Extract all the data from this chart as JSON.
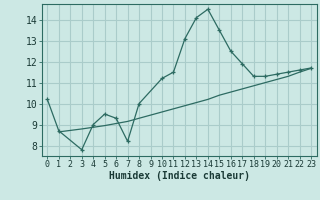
{
  "title": "",
  "xlabel": "Humidex (Indice chaleur)",
  "background_color": "#cce8e4",
  "grid_color": "#aaccca",
  "line_color": "#2d6b62",
  "xlim": [
    -0.5,
    23.5
  ],
  "ylim": [
    7.5,
    14.75
  ],
  "yticks": [
    8,
    9,
    10,
    11,
    12,
    13,
    14
  ],
  "xticks": [
    0,
    1,
    2,
    3,
    4,
    5,
    6,
    7,
    8,
    9,
    10,
    11,
    12,
    13,
    14,
    15,
    16,
    17,
    18,
    19,
    20,
    21,
    22,
    23
  ],
  "line1_x": [
    0,
    1,
    3,
    4,
    5,
    6,
    7,
    8,
    10,
    11,
    12,
    13,
    14,
    15,
    16,
    17,
    18,
    19,
    20,
    21,
    22,
    23
  ],
  "line1_y": [
    10.2,
    8.7,
    7.8,
    9.0,
    9.5,
    9.3,
    8.2,
    10.0,
    11.2,
    11.5,
    13.1,
    14.1,
    14.5,
    13.5,
    12.5,
    11.9,
    11.3,
    11.3,
    11.4,
    11.5,
    11.6,
    11.7
  ],
  "line2_x": [
    1,
    2,
    3,
    4,
    5,
    6,
    7,
    8,
    9,
    10,
    11,
    12,
    13,
    14,
    15,
    16,
    17,
    18,
    19,
    20,
    21,
    22,
    23
  ],
  "line2_y": [
    8.65,
    8.72,
    8.79,
    8.87,
    8.95,
    9.05,
    9.15,
    9.3,
    9.45,
    9.6,
    9.75,
    9.9,
    10.05,
    10.2,
    10.4,
    10.55,
    10.7,
    10.85,
    11.0,
    11.15,
    11.3,
    11.5,
    11.68
  ]
}
